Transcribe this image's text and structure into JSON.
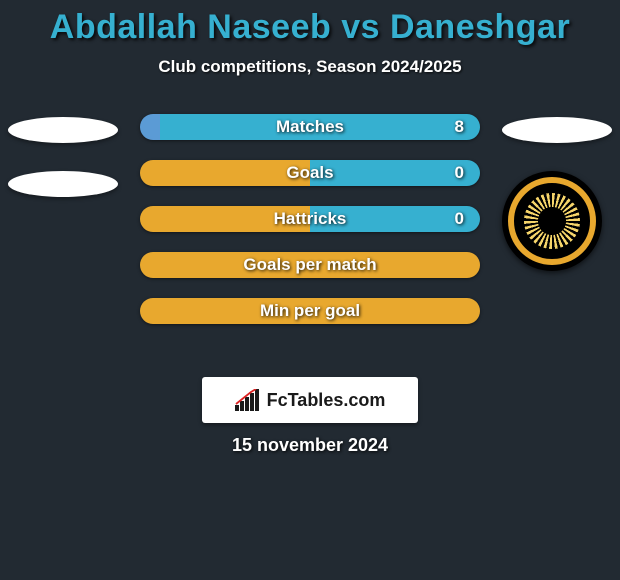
{
  "header": {
    "title": "Abdallah Naseeb vs Daneshgar",
    "subtitle": "Club competitions, Season 2024/2025"
  },
  "colors": {
    "background": "#222a32",
    "title_color": "#36b0d0",
    "bar_left_default": "#e8a82e",
    "bar_right_default": "#e8a82e",
    "bar_left_alt": "#5b9bd5",
    "bar_right_alt": "#36b0d0",
    "logo_box_bg": "#ffffff"
  },
  "stats": [
    {
      "label": "Matches",
      "right_value": "8",
      "left_pct": 6,
      "left_color": "#5b9bd5",
      "right_color": "#36b0d0"
    },
    {
      "label": "Goals",
      "right_value": "0",
      "left_pct": 50,
      "left_color": "#e8a82e",
      "right_color": "#36b0d0"
    },
    {
      "label": "Hattricks",
      "right_value": "0",
      "left_pct": 50,
      "left_color": "#e8a82e",
      "right_color": "#36b0d0"
    },
    {
      "label": "Goals per match",
      "right_value": "",
      "left_pct": 100,
      "left_color": "#e8a82e",
      "right_color": "#e8a82e"
    },
    {
      "label": "Min per goal",
      "right_value": "",
      "left_pct": 100,
      "left_color": "#e8a82e",
      "right_color": "#e8a82e"
    }
  ],
  "footer": {
    "logo_text": "FcTables.com",
    "date": "15 november 2024"
  }
}
